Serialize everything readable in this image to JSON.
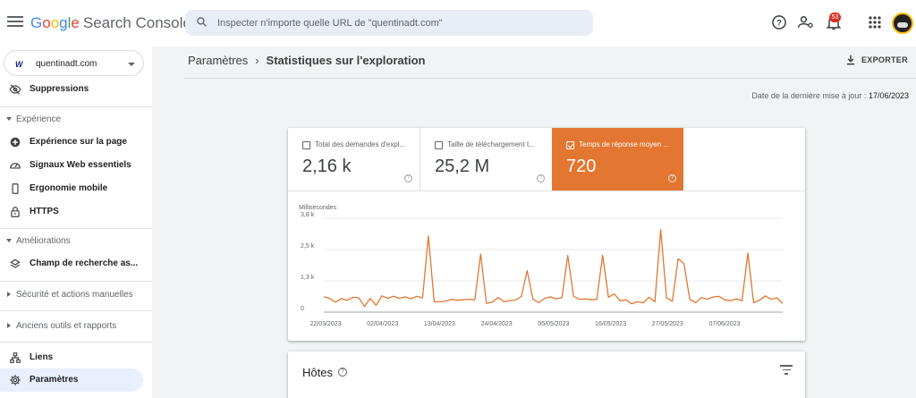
{
  "app": {
    "brand_letters": [
      "G",
      "o",
      "o",
      "g",
      "l",
      "e"
    ],
    "brand_colors": [
      "#4285f4",
      "#ea4335",
      "#fbbc04",
      "#4285f4",
      "#34a853",
      "#ea4335"
    ],
    "product": "Search Console"
  },
  "search": {
    "placeholder": "Inspecter n'importe quelle URL de \"quentinadt.com\""
  },
  "notifications": {
    "count": "53"
  },
  "property": {
    "logo_text": "W",
    "name": "quentinadt.com"
  },
  "sidebar": {
    "suppressions": "Suppressions",
    "experience_section": "Expérience",
    "experience_items": [
      "Expérience sur la page",
      "Signaux Web essentiels",
      "Ergonomie mobile",
      "HTTPS"
    ],
    "ameliorations_section": "Améliorations",
    "champ": "Champ de recherche as...",
    "securite_section": "Sécurité et actions manuelles",
    "anciens_section": "Anciens outils et rapports",
    "liens": "Liens",
    "parametres": "Paramètres"
  },
  "breadcrumb": {
    "parent": "Paramètres",
    "separator": "›",
    "current": "Statistiques sur l'exploration"
  },
  "export_label": "EXPORTER",
  "last_update": {
    "label": "Date de la dernière mise à jour :",
    "value": "17/06/2023"
  },
  "metrics": [
    {
      "label": "Total des demandes d'expl...",
      "value": "2,16 k",
      "selected": false
    },
    {
      "label": "Taille de téléchargement t...",
      "value": "25,2 M",
      "selected": false
    },
    {
      "label": "Temps de réponse moyen ...",
      "value": "720",
      "selected": true
    }
  ],
  "accent_color": "#e37631",
  "chart_data": {
    "type": "line",
    "title": "",
    "ylabel": "Millisecondes",
    "xlabel": "",
    "ylim": [
      0,
      3800
    ],
    "yticks": [
      "0",
      "1,3 k",
      "2,5 k",
      "3,8 k"
    ],
    "ytick_values": [
      0,
      1266,
      2533,
      3800
    ],
    "xticks": [
      "22/03/2023",
      "02/04/2023",
      "13/04/2023",
      "24/04/2023",
      "05/05/2023",
      "16/05/2023",
      "27/05/2023",
      "07/06/2023"
    ],
    "grid": true,
    "series": [
      {
        "color": "#e37631",
        "values": [
          620,
          560,
          400,
          550,
          480,
          600,
          580,
          230,
          560,
          280,
          660,
          560,
          640,
          560,
          620,
          540,
          640,
          580,
          3080,
          420,
          420,
          450,
          520,
          480,
          500,
          520,
          500,
          2350,
          360,
          400,
          590,
          420,
          470,
          490,
          630,
          1680,
          520,
          380,
          560,
          620,
          540,
          590,
          2290,
          640,
          520,
          540,
          500,
          520,
          2300,
          600,
          740,
          460,
          500,
          340,
          420,
          380,
          600,
          420,
          3340,
          580,
          440,
          2160,
          1960,
          520,
          380,
          590,
          520,
          610,
          640,
          500,
          460,
          540,
          460,
          2390,
          380,
          480,
          660,
          520,
          580,
          350
        ]
      }
    ]
  },
  "hosts_card": {
    "title": "Hôtes"
  }
}
